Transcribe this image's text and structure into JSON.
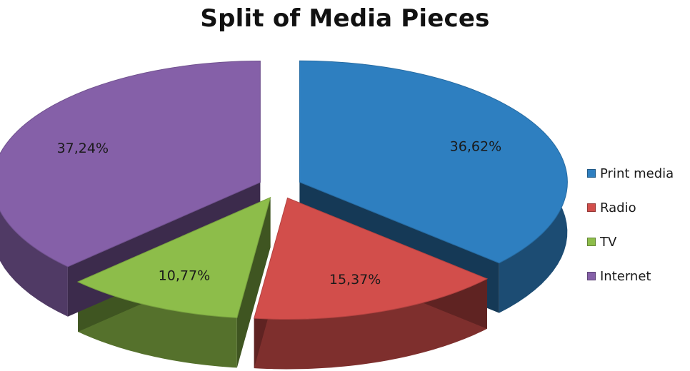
{
  "chart_data": {
    "type": "pie",
    "title": "Split of Media Pieces",
    "slices": [
      {
        "name": "Print media",
        "value": 36.62,
        "label": "36,62%",
        "color": "#2E7FC0"
      },
      {
        "name": "Radio",
        "value": 15.37,
        "label": "15,37%",
        "color": "#D24E4B"
      },
      {
        "name": "TV",
        "value": 10.77,
        "label": "10,77%",
        "color": "#8DBD4A"
      },
      {
        "name": "Internet",
        "value": 37.24,
        "label": "37,24%",
        "color": "#8560A8"
      }
    ],
    "exploded": true,
    "three_d": true,
    "legend_position": "right"
  }
}
